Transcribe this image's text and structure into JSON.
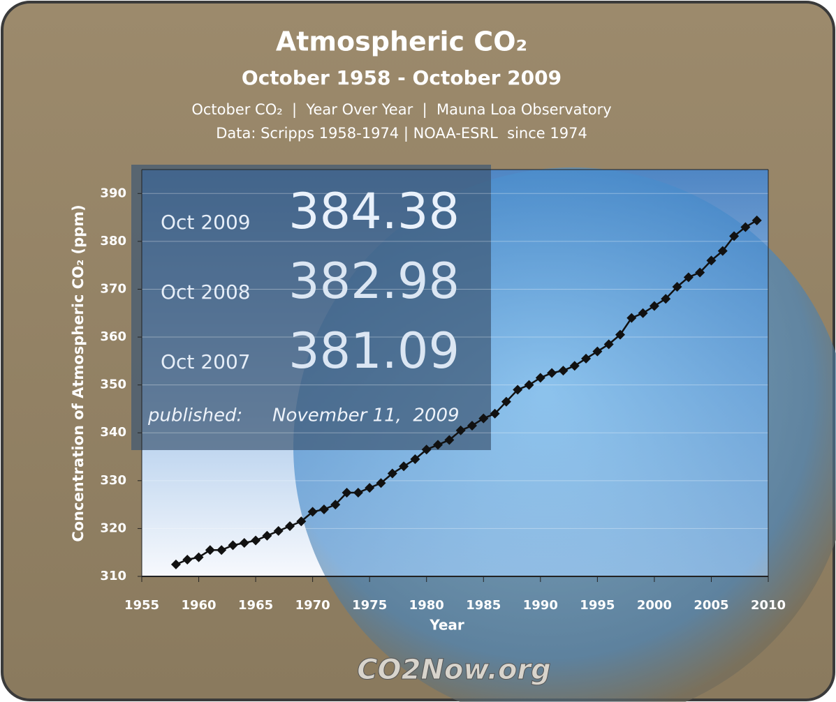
{
  "chart_data": {
    "type": "line",
    "title": "Atmospheric CO₂",
    "subtitle": "October 1958 - October 2009",
    "description": "October CO₂  |  Year Over Year  |  Mauna Loa Observatory",
    "source": "Data: Scripps 1958-1974 | NOAA-ESRL  since 1974",
    "y_label": "Concentration of Atmospheric CO₂ (ppm)",
    "x_label": "Year",
    "highlights": [
      {
        "label": "Oct  2009",
        "value": 384.38
      },
      {
        "label": "Oct  2008",
        "value": 382.98
      },
      {
        "label": "Oct  2007",
        "value": 381.09
      }
    ],
    "published_label": "published:",
    "published_date": "November 11,  2009",
    "logo": "CO2Now.org",
    "color": "#111111",
    "x": [
      1958,
      1959,
      1960,
      1961,
      1962,
      1963,
      1964,
      1965,
      1966,
      1967,
      1968,
      1969,
      1970,
      1971,
      1972,
      1973,
      1974,
      1975,
      1976,
      1977,
      1978,
      1979,
      1980,
      1981,
      1982,
      1983,
      1984,
      1985,
      1986,
      1987,
      1988,
      1989,
      1990,
      1991,
      1992,
      1993,
      1994,
      1995,
      1996,
      1997,
      1998,
      1999,
      2000,
      2001,
      2002,
      2003,
      2004,
      2005,
      2006,
      2007,
      2008,
      2009
    ],
    "values": [
      312.5,
      313.5,
      314,
      315.5,
      315.5,
      316.5,
      317,
      317.5,
      318.5,
      319.5,
      320.5,
      321.5,
      323.5,
      324,
      325,
      327.5,
      327.5,
      328.5,
      329.5,
      331.5,
      333,
      334.5,
      336.5,
      337.5,
      338.5,
      340.5,
      341.5,
      343,
      344,
      346.5,
      349,
      350,
      351.5,
      352.5,
      353,
      354,
      355.5,
      357,
      358.5,
      360.5,
      364,
      365,
      366.5,
      368,
      370.5,
      372.5,
      373.5,
      376,
      378,
      381.09,
      382.98,
      384.38
    ],
    "xlim": [
      1955,
      2010
    ],
    "ylim": [
      310,
      395
    ],
    "xticks": [
      1955,
      1960,
      1965,
      1970,
      1975,
      1980,
      1985,
      1990,
      1995,
      2000,
      2005,
      2010
    ],
    "yticks": [
      310,
      320,
      330,
      340,
      350,
      360,
      370,
      380,
      390
    ],
    "grid": true
  }
}
